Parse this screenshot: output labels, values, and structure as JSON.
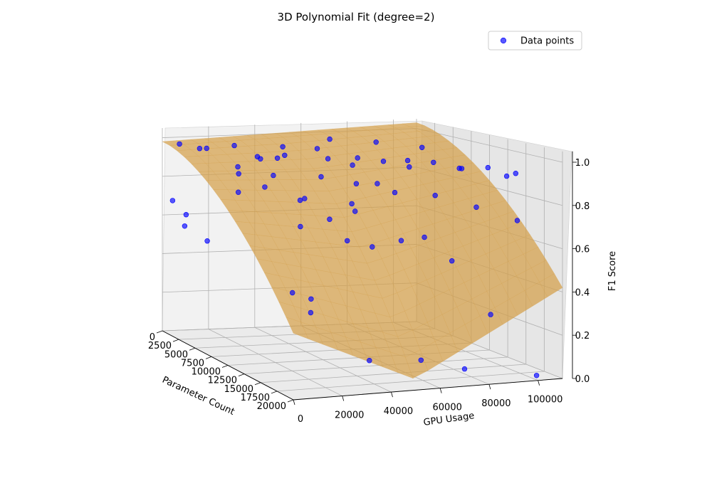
{
  "chart_data": {
    "type": "scatter",
    "title": "3D Polynomial Fit (degree=2)",
    "xlabel": "Parameter Count",
    "ylabel": "GPU Usage",
    "zlabel": "F1 Score",
    "x_ticks": [
      "0",
      "2500",
      "5000",
      "7500",
      "10000",
      "12500",
      "15000",
      "17500",
      "20000"
    ],
    "y_ticks": [
      "0",
      "20000",
      "40000",
      "60000",
      "80000",
      "100000"
    ],
    "z_ticks": [
      "0.0",
      "0.2",
      "0.4",
      "0.6",
      "0.8",
      "1.0"
    ],
    "xlim": [
      0,
      20000
    ],
    "ylim": [
      0,
      110000
    ],
    "zlim": [
      0,
      1.05
    ],
    "legend": {
      "label": "Data points",
      "placement": "top-right"
    },
    "colors": {
      "points": "#0000ff",
      "surface": "#d4a04a"
    },
    "surface": {
      "name": "polynomial fit",
      "degree": 2
    },
    "points": [
      {
        "x": 1200,
        "y": 4000,
        "z": 0.98
      },
      {
        "x": 2500,
        "y": 9000,
        "z": 0.97
      },
      {
        "x": 1800,
        "y": 14000,
        "z": 0.96
      },
      {
        "x": 3500,
        "y": 21000,
        "z": 0.99
      },
      {
        "x": 5200,
        "y": 26000,
        "z": 0.95
      },
      {
        "x": 6800,
        "y": 33000,
        "z": 0.97
      },
      {
        "x": 4100,
        "y": 40000,
        "z": 0.98
      },
      {
        "x": 8300,
        "y": 47000,
        "z": 0.96
      },
      {
        "x": 9800,
        "y": 53000,
        "z": 0.94
      },
      {
        "x": 11500,
        "y": 61000,
        "z": 0.97
      },
      {
        "x": 12800,
        "y": 68000,
        "z": 0.95
      },
      {
        "x": 14200,
        "y": 74000,
        "z": 0.98
      },
      {
        "x": 15800,
        "y": 81000,
        "z": 0.96
      },
      {
        "x": 17100,
        "y": 88000,
        "z": 0.97
      },
      {
        "x": 18600,
        "y": 95000,
        "z": 0.95
      },
      {
        "x": 7200,
        "y": 12000,
        "z": 0.93
      },
      {
        "x": 10400,
        "y": 18000,
        "z": 0.92
      },
      {
        "x": 13600,
        "y": 29000,
        "z": 0.94
      },
      {
        "x": 16300,
        "y": 36000,
        "z": 0.93
      },
      {
        "x": 19100,
        "y": 44000,
        "z": 0.91
      },
      {
        "x": 3000,
        "y": 58000,
        "z": 0.95
      },
      {
        "x": 6100,
        "y": 66000,
        "z": 0.93
      },
      {
        "x": 9200,
        "y": 78000,
        "z": 0.94
      },
      {
        "x": 12100,
        "y": 91000,
        "z": 0.92
      },
      {
        "x": 15000,
        "y": 102000,
        "z": 0.9
      },
      {
        "x": 800,
        "y": 70000,
        "z": 0.97
      },
      {
        "x": 2100,
        "y": 86000,
        "z": 0.96
      },
      {
        "x": 4600,
        "y": 98000,
        "z": 0.95
      },
      {
        "x": 18000,
        "y": 10000,
        "z": 0.9
      },
      {
        "x": 19600,
        "y": 25000,
        "z": 0.88
      },
      {
        "x": 500,
        "y": 3000,
        "z": 0.68
      },
      {
        "x": 1500,
        "y": 6000,
        "z": 0.62
      },
      {
        "x": 2700,
        "y": 2000,
        "z": 0.58
      },
      {
        "x": 4000,
        "y": 8000,
        "z": 0.52
      },
      {
        "x": 9000,
        "y": 30000,
        "z": 0.32
      },
      {
        "x": 10000,
        "y": 35000,
        "z": 0.3
      },
      {
        "x": 11000,
        "y": 32000,
        "z": 0.25
      },
      {
        "x": 6000,
        "y": 42000,
        "z": 0.6
      },
      {
        "x": 7500,
        "y": 50000,
        "z": 0.65
      },
      {
        "x": 8800,
        "y": 57000,
        "z": 0.7
      },
      {
        "x": 11800,
        "y": 45000,
        "z": 0.6
      },
      {
        "x": 13000,
        "y": 52000,
        "z": 0.58
      },
      {
        "x": 14400,
        "y": 60000,
        "z": 0.62
      },
      {
        "x": 16000,
        "y": 65000,
        "z": 0.65
      },
      {
        "x": 17500,
        "y": 72000,
        "z": 0.55
      },
      {
        "x": 19000,
        "y": 55000,
        "z": 0.12
      },
      {
        "x": 20000,
        "y": 70000,
        "z": 0.08
      },
      {
        "x": 18500,
        "y": 85000,
        "z": 0.3
      },
      {
        "x": 19800,
        "y": 100000,
        "z": 0.02
      },
      {
        "x": 16800,
        "y": 40000,
        "z": 0.1
      },
      {
        "x": 3800,
        "y": 22000,
        "z": 0.85
      },
      {
        "x": 5500,
        "y": 17000,
        "z": 0.78
      },
      {
        "x": 7000,
        "y": 24000,
        "z": 0.82
      },
      {
        "x": 9600,
        "y": 64000,
        "z": 0.84
      },
      {
        "x": 12400,
        "y": 80000,
        "z": 0.8
      },
      {
        "x": 14800,
        "y": 90000,
        "z": 0.76
      },
      {
        "x": 17800,
        "y": 98000,
        "z": 0.72
      },
      {
        "x": 600,
        "y": 48000,
        "z": 0.88
      },
      {
        "x": 2200,
        "y": 36000,
        "z": 0.9
      },
      {
        "x": 15500,
        "y": 15000,
        "z": 0.86
      }
    ]
  }
}
